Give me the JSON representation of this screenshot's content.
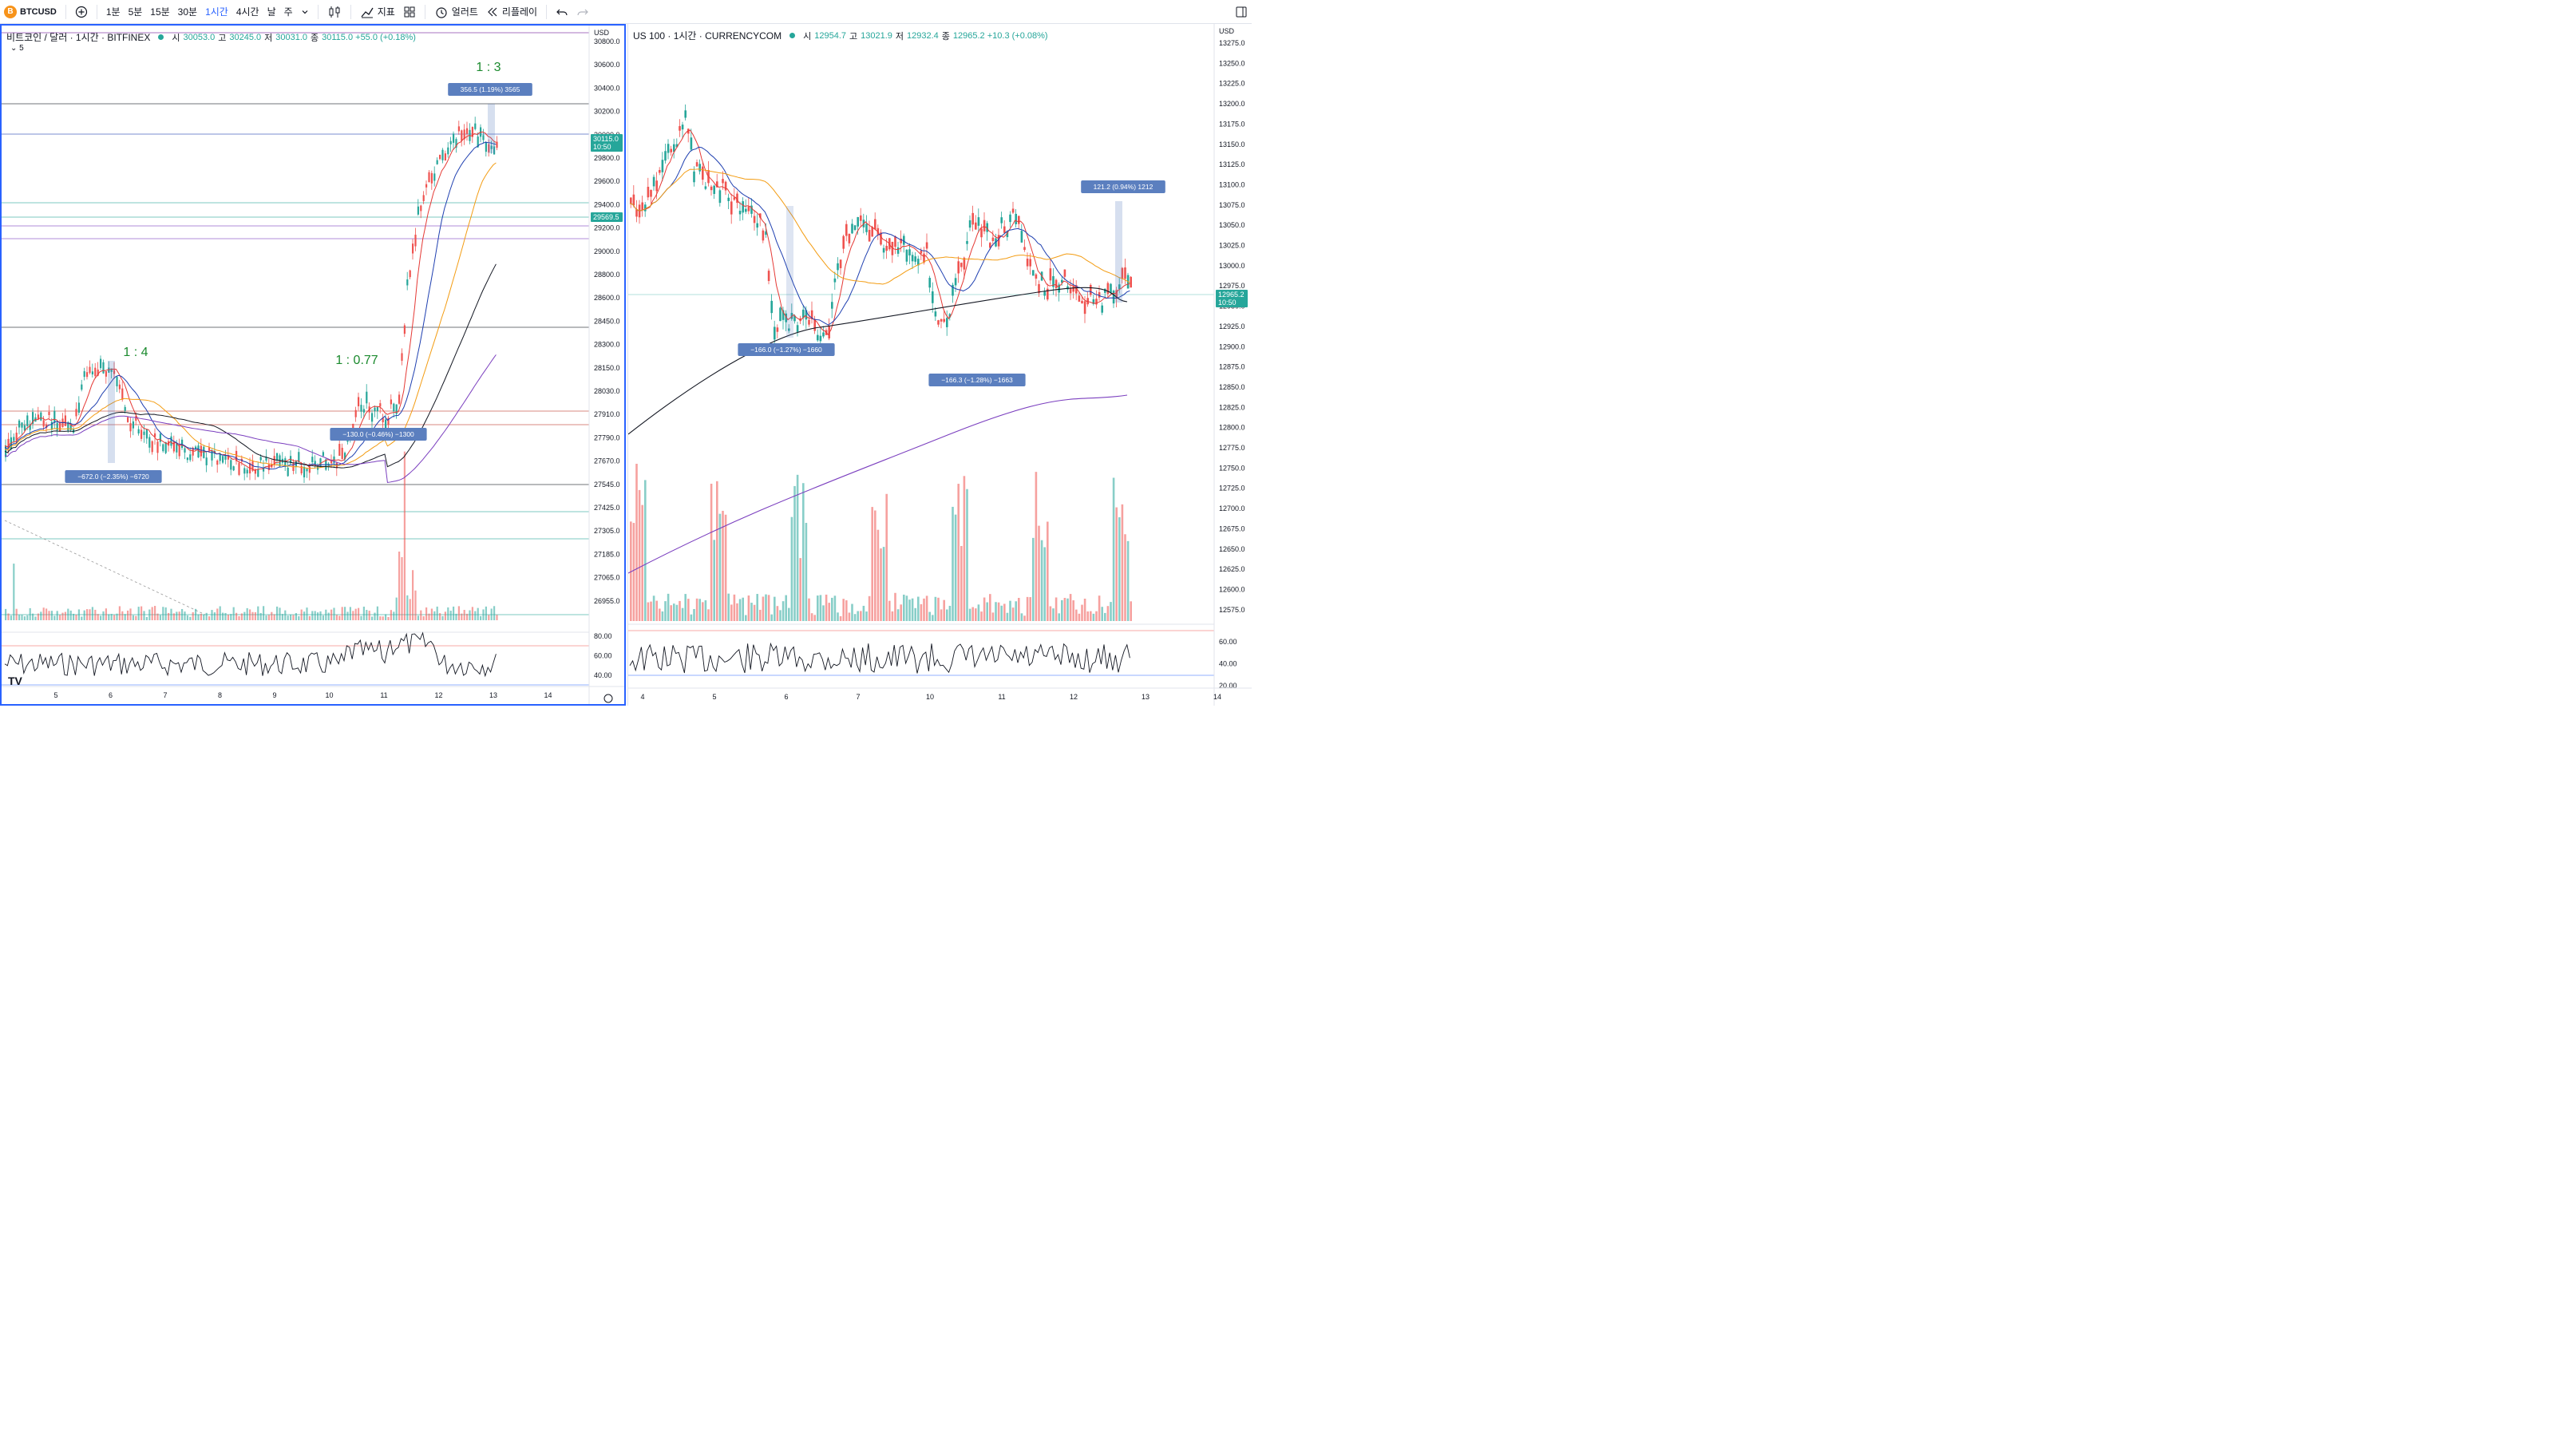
{
  "toolbar": {
    "symbol": "BTCUSD",
    "logo_char": "B",
    "intervals": [
      "1분",
      "5분",
      "15분",
      "30분",
      "1시간",
      "4시간",
      "날",
      "주"
    ],
    "active_interval": "1시간",
    "indicators_label": "지표",
    "alert_label": "얼러트",
    "replay_label": "리플레이"
  },
  "left_chart": {
    "title": "비트코인 / 달러 · 1시간 · BITFINEX",
    "ohlc": [
      {
        "label": "시",
        "value": "30053.0"
      },
      {
        "label": "고",
        "value": "30245.0"
      },
      {
        "label": "저",
        "value": "30031.0"
      },
      {
        "label": "종",
        "value": "30115.0 +55.0 (+0.18%)"
      }
    ],
    "sub_toggle": "5",
    "currency_label": "USD",
    "price_ticks": [
      "30800.0",
      "30600.0",
      "30400.0",
      "30200.0",
      "30000.0",
      "29800.0",
      "29600.0",
      "29400.0",
      "29200.0",
      "29000.0",
      "28800.0",
      "28600.0",
      "28450.0",
      "28300.0",
      "28150.0",
      "28030.0",
      "27910.0",
      "27790.0",
      "27670.0",
      "27545.0",
      "27425.0",
      "27305.0",
      "27185.0",
      "27065.0",
      "26955.0"
    ],
    "last_price_tag": {
      "price": "30115.0",
      "time": "10:50"
    },
    "line_tag": "29569.5",
    "rsi_ticks": [
      "80.00",
      "60.00",
      "40.00"
    ],
    "x_ticks": [
      "5",
      "6",
      "7",
      "8",
      "9",
      "10",
      "11",
      "12",
      "13",
      "14"
    ],
    "ratio_labels": [
      "1 : 4",
      "1 : 0.77",
      "1 : 3"
    ],
    "measure_labels": [
      "−672.0 (−2.35%) −6720",
      "−130.0 (−0.46%) −1300",
      "356.5 (1.19%) 3565"
    ],
    "colors": {
      "up": "#26a69a",
      "down": "#ef5350",
      "ma1": "#e53935",
      "ma2": "#1e3fb0",
      "ma3": "#f39c12",
      "ma4": "#131722",
      "ma5": "#7b3fbf",
      "measure": "#5b7fbf"
    }
  },
  "right_chart": {
    "title": "US 100 · 1시간 · CURRENCYCOM",
    "ohlc": [
      {
        "label": "시",
        "value": "12954.7"
      },
      {
        "label": "고",
        "value": "13021.9"
      },
      {
        "label": "저",
        "value": "12932.4"
      },
      {
        "label": "종",
        "value": "12965.2 +10.3 (+0.08%)"
      }
    ],
    "currency_label": "USD",
    "price_ticks": [
      "13275.0",
      "13250.0",
      "13225.0",
      "13200.0",
      "13175.0",
      "13150.0",
      "13125.0",
      "13100.0",
      "13075.0",
      "13050.0",
      "13025.0",
      "13000.0",
      "12975.0",
      "12950.0",
      "12925.0",
      "12900.0",
      "12875.0",
      "12850.0",
      "12825.0",
      "12800.0",
      "12775.0",
      "12750.0",
      "12725.0",
      "12700.0",
      "12675.0",
      "12650.0",
      "12625.0",
      "12600.0",
      "12575.0"
    ],
    "last_price_tag": {
      "price": "12965.2",
      "time": "10:50"
    },
    "rsi_ticks": [
      "60.00",
      "40.00",
      "20.00"
    ],
    "x_ticks": [
      "4",
      "5",
      "6",
      "7",
      "10",
      "11",
      "12",
      "13",
      "14"
    ],
    "measure_labels": [
      "−166.0 (−1.27%) −1660",
      "−166.3 (−1.28%) −1663",
      "121.2 (0.94%) 1212"
    ]
  }
}
